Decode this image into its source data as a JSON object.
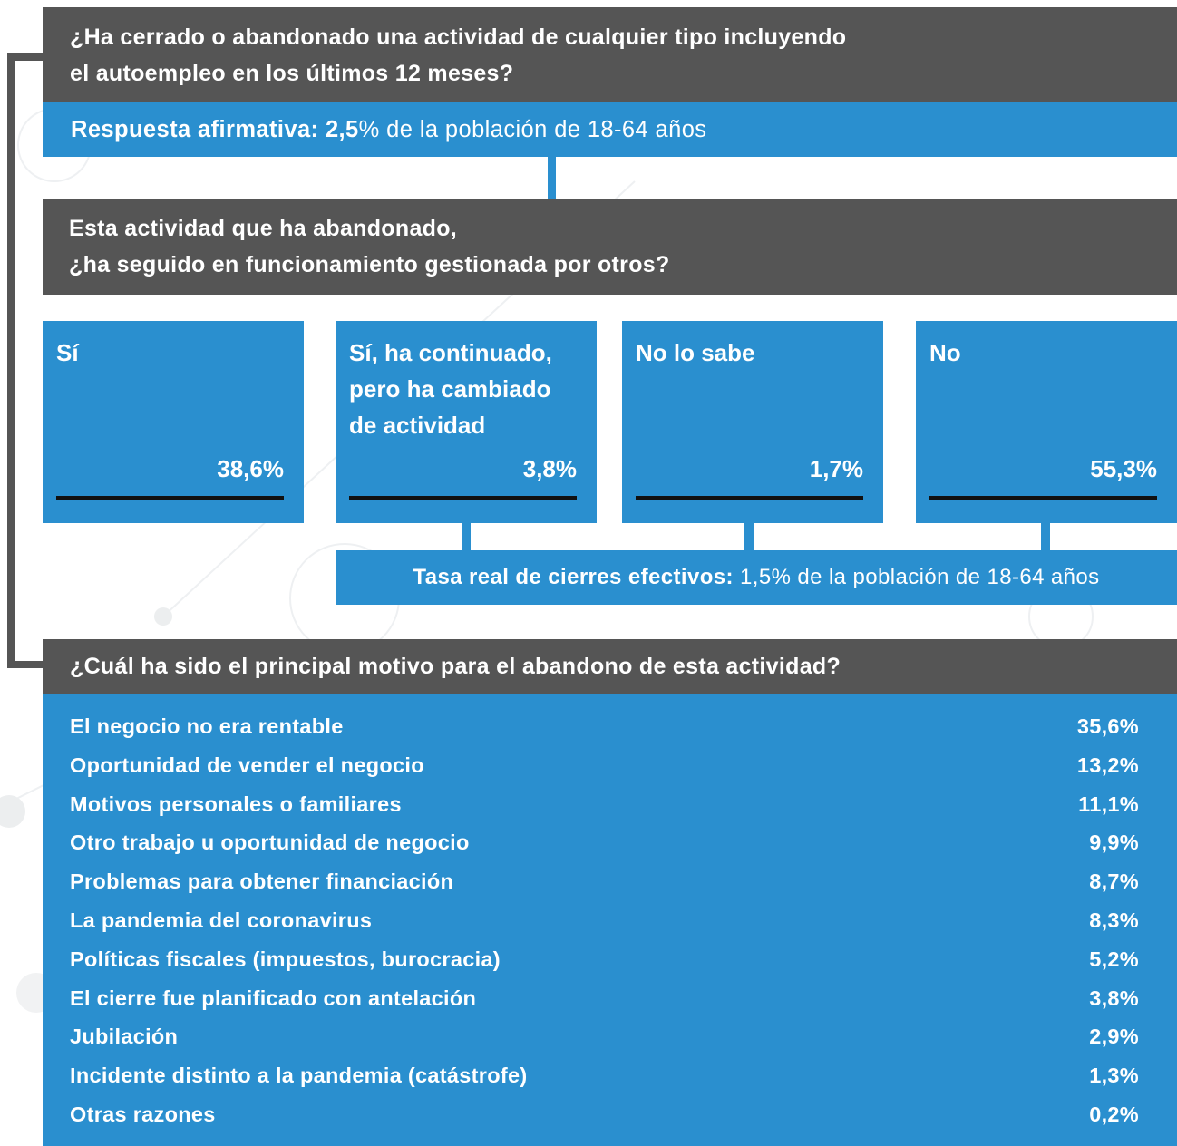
{
  "question1": {
    "lines": [
      "¿Ha cerrado o abandonado una actividad de cualquier tipo incluyendo",
      "el autoempleo en los últimos 12 meses?"
    ]
  },
  "answer1": {
    "label": "Respuesta afirmativa:",
    "value": "2,5",
    "rest": "% de la población de 18-64 años"
  },
  "question2": {
    "lines": [
      "Esta actividad que ha abandonado,",
      "¿ha seguido en funcionamiento gestionada por otros?"
    ]
  },
  "options": [
    {
      "label": [
        "Sí"
      ],
      "value": "38,6%"
    },
    {
      "label": [
        "Sí, ha continuado,",
        "pero ha cambiado",
        "de actividad"
      ],
      "value": "3,8%"
    },
    {
      "label": [
        "No lo sabe"
      ],
      "value": "1,7%"
    },
    {
      "label": [
        "No"
      ],
      "value": "55,3%"
    }
  ],
  "rate": {
    "label": "Tasa real de cierres efectivos:",
    "rest": "1,5% de la población de 18-64 años"
  },
  "question3": "¿Cuál ha sido el principal motivo para el abandono de esta actividad?",
  "reasons": [
    {
      "label": "El negocio no era rentable",
      "value": "35,6%"
    },
    {
      "label": "Oportunidad de vender el negocio",
      "value": "13,2%"
    },
    {
      "label": "Motivos personales o familiares",
      "value": "11,1%"
    },
    {
      "label": "Otro trabajo u oportunidad de negocio",
      "value": "9,9%"
    },
    {
      "label": "Problemas para obtener financiación",
      "value": "8,7%"
    },
    {
      "label": "La pandemia del coronavirus",
      "value": "8,3%"
    },
    {
      "label": "Políticas fiscales (impuestos, burocracia)",
      "value": "5,2%"
    },
    {
      "label": "El cierre fue planificado con antelación",
      "value": "3,8%"
    },
    {
      "label": "Jubilación",
      "value": "2,9%"
    },
    {
      "label": "Incidente distinto a la pandemia (catástrofe)",
      "value": "1,3%"
    },
    {
      "label": "Otras razones",
      "value": "0,2%"
    }
  ]
}
